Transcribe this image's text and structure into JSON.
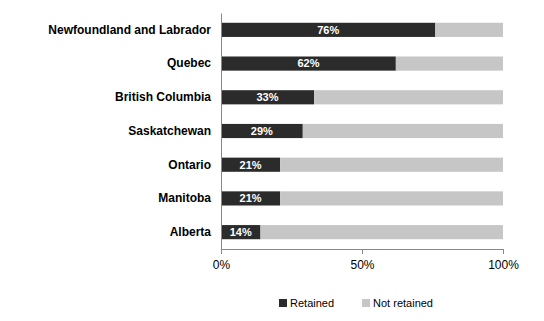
{
  "chart_data": {
    "type": "bar",
    "orientation": "horizontal",
    "stacked": true,
    "data_labels": true,
    "grid": false,
    "legend": "bottom",
    "categories": [
      "Newfoundland and Labrador",
      "Quebec",
      "British Columbia",
      "Saskatchewan",
      "Ontario",
      "Manitoba",
      "Alberta"
    ],
    "series": [
      {
        "name": "Retained",
        "color": "#2b2b2b",
        "values": [
          76,
          62,
          33,
          29,
          21,
          21,
          14
        ],
        "value_labels": [
          "76%",
          "62%",
          "33%",
          "29%",
          "21%",
          "21%",
          "14%"
        ]
      },
      {
        "name": "Not retained",
        "color": "#c6c6c6",
        "values": [
          24,
          38,
          67,
          71,
          79,
          79,
          86
        ]
      }
    ],
    "xlim": [
      0,
      100
    ],
    "xticks": [
      {
        "value": 0,
        "label": "0%"
      },
      {
        "value": 50,
        "label": "50%"
      },
      {
        "value": 100,
        "label": "100%"
      }
    ]
  }
}
